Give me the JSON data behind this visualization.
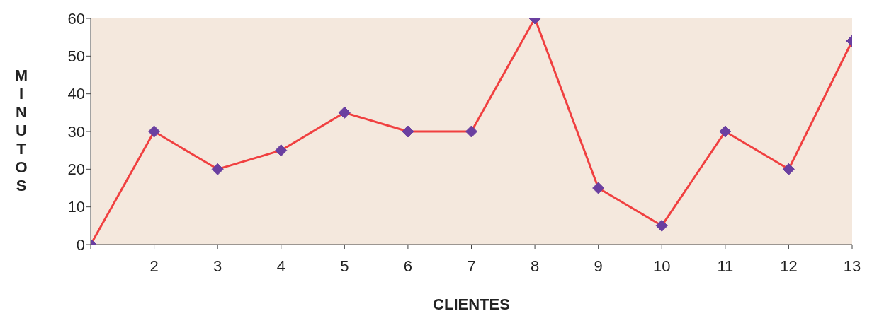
{
  "chart_data": {
    "type": "line",
    "xlabel": "CLIENTES",
    "ylabel": "MINUTOS",
    "categories": [
      null,
      "2",
      "3",
      "4",
      "5",
      "6",
      "7",
      "8",
      "9",
      "10",
      "11",
      "12",
      "13"
    ],
    "series": [
      {
        "color": "#f04040",
        "values": [
          0,
          30,
          20,
          25,
          35,
          30,
          30,
          60,
          15,
          5,
          30,
          20,
          54
        ]
      }
    ],
    "ylim": [
      0,
      60
    ],
    "yticks": [
      0,
      10,
      20,
      30,
      40,
      50,
      60
    ],
    "grid": false,
    "legend": false,
    "marker": "diamond"
  }
}
